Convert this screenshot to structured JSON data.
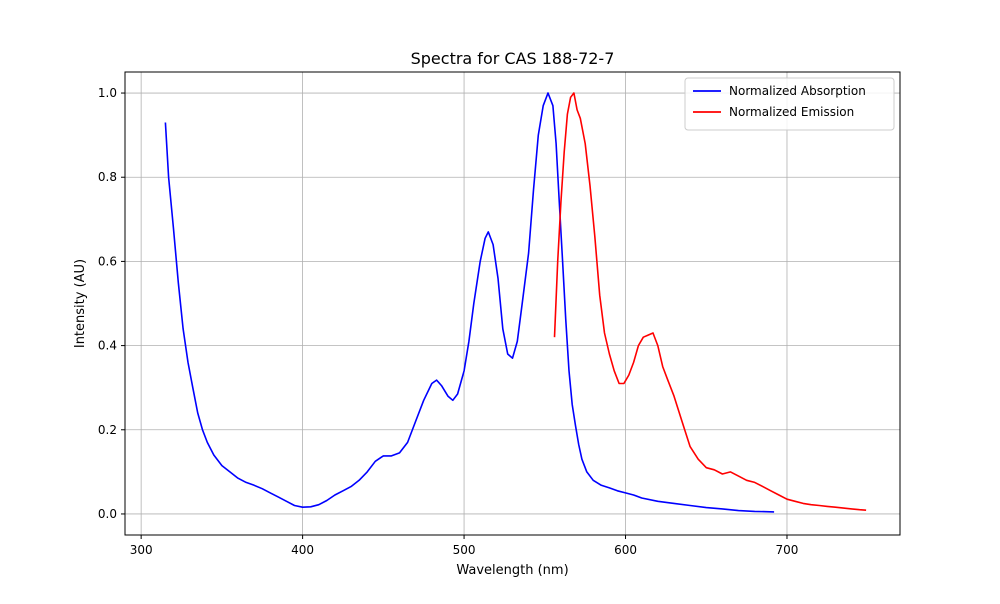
{
  "chart_data": {
    "type": "line",
    "title": "Spectra for CAS 188-72-7",
    "xlabel": "Wavelength (nm)",
    "ylabel": "Intensity (AU)",
    "xlim": [
      290,
      770
    ],
    "ylim": [
      -0.05,
      1.05
    ],
    "xticks": [
      300,
      400,
      500,
      600,
      700
    ],
    "yticks": [
      0.0,
      0.2,
      0.4,
      0.6,
      0.8,
      1.0
    ],
    "xtick_labels": [
      "300",
      "400",
      "500",
      "600",
      "700"
    ],
    "ytick_labels": [
      "0.0",
      "0.2",
      "0.4",
      "0.6",
      "0.8",
      "1.0"
    ],
    "grid": true,
    "legend_position": "top-right",
    "series": [
      {
        "name": "Normalized Absorption",
        "color": "#0000ff",
        "x": [
          315,
          317,
          320,
          323,
          326,
          329,
          332,
          335,
          338,
          341,
          345,
          350,
          355,
          360,
          365,
          370,
          375,
          380,
          385,
          390,
          395,
          400,
          405,
          410,
          415,
          420,
          425,
          430,
          435,
          440,
          445,
          450,
          455,
          460,
          465,
          470,
          475,
          480,
          483,
          486,
          490,
          493,
          496,
          500,
          503,
          506,
          510,
          513,
          515,
          518,
          521,
          524,
          527,
          530,
          533,
          536,
          540,
          543,
          546,
          549,
          552,
          555,
          557,
          559,
          561,
          563,
          565,
          567,
          569,
          571,
          573,
          576,
          580,
          585,
          590,
          595,
          600,
          605,
          610,
          620,
          630,
          640,
          650,
          660,
          670,
          680,
          692
        ],
        "y": [
          0.93,
          0.8,
          0.68,
          0.55,
          0.44,
          0.36,
          0.3,
          0.24,
          0.2,
          0.17,
          0.14,
          0.115,
          0.1,
          0.085,
          0.075,
          0.068,
          0.06,
          0.05,
          0.04,
          0.03,
          0.02,
          0.016,
          0.017,
          0.022,
          0.032,
          0.045,
          0.055,
          0.065,
          0.08,
          0.1,
          0.125,
          0.138,
          0.138,
          0.145,
          0.17,
          0.22,
          0.27,
          0.31,
          0.318,
          0.305,
          0.28,
          0.27,
          0.285,
          0.34,
          0.41,
          0.5,
          0.6,
          0.655,
          0.67,
          0.64,
          0.56,
          0.44,
          0.38,
          0.37,
          0.41,
          0.5,
          0.62,
          0.77,
          0.9,
          0.97,
          1.0,
          0.97,
          0.88,
          0.74,
          0.6,
          0.46,
          0.34,
          0.26,
          0.21,
          0.165,
          0.13,
          0.1,
          0.08,
          0.068,
          0.062,
          0.055,
          0.05,
          0.045,
          0.038,
          0.03,
          0.025,
          0.02,
          0.015,
          0.012,
          0.008,
          0.006,
          0.005
        ]
      },
      {
        "name": "Normalized Emission",
        "color": "#ff0000",
        "x": [
          556,
          558,
          560,
          562,
          564,
          566,
          568,
          570,
          572,
          575,
          578,
          581,
          584,
          587,
          590,
          593,
          596,
          599,
          602,
          605,
          608,
          611,
          614,
          617,
          620,
          623,
          626,
          630,
          635,
          640,
          645,
          650,
          655,
          660,
          665,
          670,
          675,
          680,
          685,
          690,
          695,
          700,
          705,
          710,
          715,
          720,
          725,
          730,
          735,
          740,
          745,
          749
        ],
        "y": [
          0.42,
          0.6,
          0.74,
          0.86,
          0.95,
          0.99,
          1.0,
          0.96,
          0.94,
          0.88,
          0.78,
          0.66,
          0.52,
          0.43,
          0.38,
          0.34,
          0.31,
          0.31,
          0.33,
          0.36,
          0.4,
          0.42,
          0.425,
          0.43,
          0.4,
          0.35,
          0.32,
          0.28,
          0.22,
          0.16,
          0.13,
          0.11,
          0.105,
          0.095,
          0.1,
          0.09,
          0.08,
          0.075,
          0.065,
          0.055,
          0.045,
          0.035,
          0.03,
          0.025,
          0.022,
          0.02,
          0.018,
          0.016,
          0.014,
          0.012,
          0.01,
          0.009
        ]
      }
    ]
  }
}
